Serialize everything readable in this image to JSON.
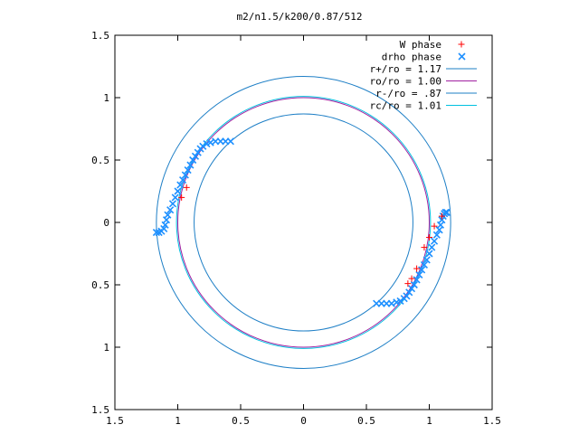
{
  "chart_data": {
    "type": "scatter",
    "title": "m2/n1.5/k200/0.87/512",
    "xlabel": "",
    "ylabel": "",
    "xlim": [
      -1.5,
      1.5
    ],
    "ylim": [
      -1.5,
      1.5
    ],
    "xticks": [
      -1.5,
      -1,
      -0.5,
      0,
      0.5,
      1,
      1.5
    ],
    "yticks": [
      -1.5,
      -1,
      -0.5,
      0,
      0.5,
      1,
      1.5
    ],
    "xtick_labels": [
      "1.5",
      "1",
      "0.5",
      "0",
      "0.5",
      "1",
      "1.5"
    ],
    "ytick_labels": [
      "1.5",
      "1",
      "0.5",
      "0",
      "0.5",
      "1",
      "1.5"
    ],
    "grid": false,
    "legend_position": "top-right",
    "legend": [
      {
        "label": "W phase",
        "kind": "points",
        "marker": "+",
        "color": "#ff0000"
      },
      {
        "label": "drho phase",
        "kind": "points",
        "marker": "x",
        "color": "#1e90ff"
      },
      {
        "label": "r+/ro = 1.17",
        "kind": "line",
        "color": "#1e7fc6"
      },
      {
        "label": "ro/ro = 1.00",
        "kind": "line",
        "color": "#a020a0"
      },
      {
        "label": "r-/ro = .87",
        "kind": "line",
        "color": "#1e7fc6"
      },
      {
        "label": "rc/ro = 1.01",
        "kind": "line",
        "color": "#00c0e0"
      }
    ],
    "circles": [
      {
        "name": "r+/ro = 1.17",
        "r": 1.17,
        "color": "#1e7fc6"
      },
      {
        "name": "ro/ro = 1.00",
        "r": 1.0,
        "color": "#a020a0"
      },
      {
        "name": "r-/ro = .87",
        "r": 0.87,
        "color": "#1e7fc6"
      },
      {
        "name": "rc/ro = 1.01",
        "r": 1.01,
        "color": "#00c0e0"
      }
    ],
    "series": [
      {
        "name": "W phase",
        "marker": "+",
        "color": "#ff0000",
        "points": [
          [
            -0.97,
            0.2
          ],
          [
            -0.93,
            0.28
          ],
          [
            0.83,
            -0.49
          ],
          [
            0.86,
            -0.45
          ],
          [
            0.9,
            -0.37
          ],
          [
            0.96,
            -0.2
          ],
          [
            1.0,
            -0.12
          ],
          [
            1.04,
            -0.03
          ],
          [
            1.1,
            0.05
          ]
        ]
      },
      {
        "name": "drho phase",
        "marker": "x",
        "color": "#1e90ff",
        "points": [
          [
            -1.17,
            -0.08
          ],
          [
            -1.15,
            -0.08
          ],
          [
            -1.13,
            -0.07
          ],
          [
            -1.11,
            -0.05
          ],
          [
            -1.1,
            -0.02
          ],
          [
            -1.09,
            0.02
          ],
          [
            -1.08,
            0.06
          ],
          [
            -1.06,
            0.1
          ],
          [
            -1.04,
            0.15
          ],
          [
            -1.02,
            0.2
          ],
          [
            -1.0,
            0.25
          ],
          [
            -0.98,
            0.3
          ],
          [
            -0.96,
            0.34
          ],
          [
            -0.94,
            0.38
          ],
          [
            -0.92,
            0.42
          ],
          [
            -0.9,
            0.46
          ],
          [
            -0.88,
            0.5
          ],
          [
            -0.86,
            0.53
          ],
          [
            -0.84,
            0.56
          ],
          [
            -0.82,
            0.59
          ],
          [
            -0.8,
            0.61
          ],
          [
            -0.77,
            0.63
          ],
          [
            -0.74,
            0.64
          ],
          [
            -0.7,
            0.65
          ],
          [
            -0.66,
            0.65
          ],
          [
            -0.62,
            0.65
          ],
          [
            -0.58,
            0.65
          ],
          [
            1.14,
            0.08
          ],
          [
            1.13,
            0.08
          ],
          [
            1.12,
            0.07
          ],
          [
            1.11,
            0.05
          ],
          [
            1.1,
            0.02
          ],
          [
            1.09,
            -0.02
          ],
          [
            1.08,
            -0.06
          ],
          [
            1.06,
            -0.1
          ],
          [
            1.04,
            -0.15
          ],
          [
            1.02,
            -0.2
          ],
          [
            1.0,
            -0.25
          ],
          [
            0.98,
            -0.3
          ],
          [
            0.96,
            -0.34
          ],
          [
            0.94,
            -0.38
          ],
          [
            0.92,
            -0.42
          ],
          [
            0.9,
            -0.46
          ],
          [
            0.88,
            -0.5
          ],
          [
            0.86,
            -0.53
          ],
          [
            0.84,
            -0.56
          ],
          [
            0.82,
            -0.59
          ],
          [
            0.8,
            -0.61
          ],
          [
            0.77,
            -0.63
          ],
          [
            0.74,
            -0.64
          ],
          [
            0.7,
            -0.65
          ],
          [
            0.66,
            -0.65
          ],
          [
            0.62,
            -0.65
          ],
          [
            0.58,
            -0.65
          ]
        ]
      }
    ]
  }
}
